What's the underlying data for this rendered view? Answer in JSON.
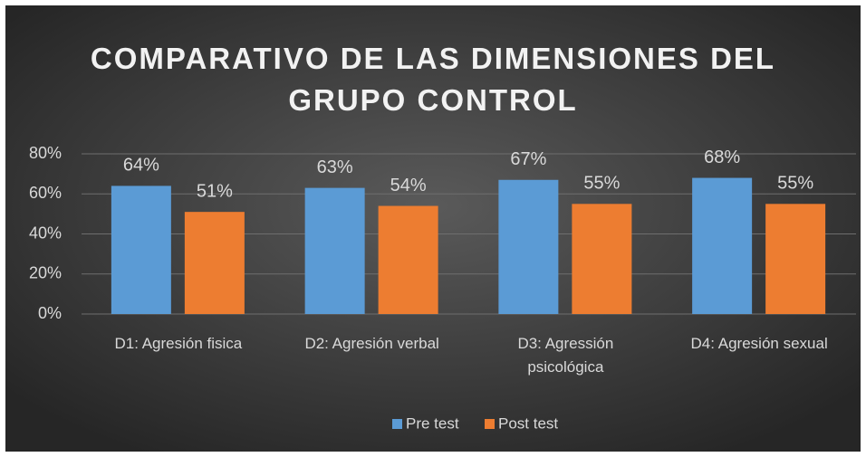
{
  "chart_data": {
    "type": "bar",
    "title": "COMPARATIVO DE LAS DIMENSIONES DEL GRUPO CONTROL",
    "categories": [
      "D1: Agresión fisica",
      "D2: Agresión verbal",
      "D3: Agressión psicológica",
      "D4: Agresión sexual"
    ],
    "series": [
      {
        "name": "Pre test",
        "color": "#5b9bd5",
        "values": [
          64,
          63,
          67,
          68
        ],
        "value_labels": [
          "64%",
          "63%",
          "67%",
          "68%"
        ]
      },
      {
        "name": "Post test",
        "color": "#ed7d31",
        "values": [
          51,
          54,
          55,
          55
        ],
        "value_labels": [
          "51%",
          "54%",
          "55%",
          "55%"
        ]
      }
    ],
    "ylim": [
      0,
      80
    ],
    "yticks": [
      {
        "value": 0,
        "label": "0%"
      },
      {
        "value": 20,
        "label": "20%"
      },
      {
        "value": 40,
        "label": "40%"
      },
      {
        "value": 60,
        "label": "60%"
      },
      {
        "value": 80,
        "label": "80%"
      }
    ],
    "grid": true,
    "legend": "bottom"
  }
}
